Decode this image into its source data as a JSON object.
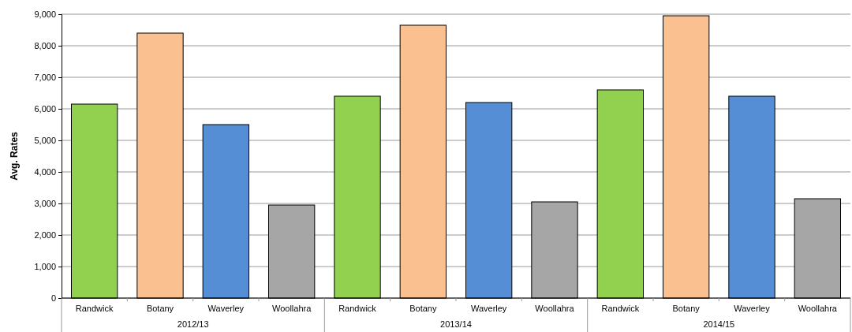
{
  "chart_data": {
    "type": "bar",
    "ylabel": "Avg. Rates",
    "categories": [
      "Randwick",
      "Botany",
      "Waverley",
      "Woollahra",
      "Randwick",
      "Botany",
      "Waverley",
      "Woollahra",
      "Randwick",
      "Botany",
      "Waverley",
      "Woollahra"
    ],
    "values": [
      6150,
      8400,
      5500,
      2950,
      6400,
      8650,
      6200,
      3050,
      6600,
      8950,
      6400,
      3150
    ],
    "colors": [
      "#92d050",
      "#fac090",
      "#558ed5",
      "#a6a6a6",
      "#92d050",
      "#fac090",
      "#558ed5",
      "#a6a6a6",
      "#92d050",
      "#fac090",
      "#558ed5",
      "#a6a6a6"
    ],
    "annotations": [
      "2012/13",
      "2013/14",
      "2014/15"
    ],
    "ylim": [
      0,
      9000
    ],
    "yticks": [
      0,
      {
        "value": 1000,
        "label": "1,000"
      },
      {
        "value": 2000,
        "label": "2,000"
      },
      {
        "value": 3000,
        "label": "3,000"
      },
      {
        "value": 4000,
        "label": "4,000"
      },
      {
        "value": 5000,
        "label": "5,000"
      },
      {
        "value": 6000,
        "label": "6,000"
      },
      {
        "value": 7000,
        "label": "7,000"
      },
      {
        "value": 8000,
        "label": "8,000"
      },
      {
        "value": 9000,
        "label": "9,000"
      }
    ],
    "grid": "y"
  }
}
